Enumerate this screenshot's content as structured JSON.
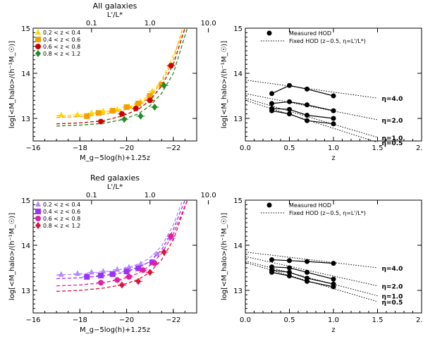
{
  "chart_data": [
    {
      "id": "all-hod-mag",
      "type": "scatter",
      "title": "All galaxies",
      "xlabel": "M_g−5log(h)+1.25z",
      "ylabel": "log[<M_halo>/(h⁻¹M_☉)]",
      "top_xlabel": "L'/L*",
      "xlim": [
        -16,
        -23
      ],
      "ylim": [
        12.5,
        15
      ],
      "xticks": [
        -16,
        -18,
        -20,
        -22
      ],
      "xtick_labels": [
        "−16",
        "−18",
        "−20",
        "−22"
      ],
      "yticks": [
        13,
        14,
        15
      ],
      "ytick_labels": [
        "13",
        "14",
        "15"
      ],
      "top_ticks": [
        0.1,
        1.0,
        10.0
      ],
      "top_tick_labels": [
        "0.1",
        "1.0",
        "10.0"
      ],
      "legend_position": "top-left",
      "series": [
        {
          "name": "0.2 < z < 0.4",
          "color": "#FFD700",
          "marker": "triangle",
          "x": [
            -17.2,
            -17.9,
            -18.5,
            -19.0,
            -19.6,
            -20.1,
            -20.6,
            -21.1
          ],
          "y": [
            13.07,
            13.08,
            13.12,
            13.16,
            13.2,
            13.26,
            13.37,
            13.6
          ],
          "curve": [
            [
              -17.0,
              13.06
            ],
            [
              -18.0,
              13.08
            ],
            [
              -19.0,
              13.13
            ],
            [
              -19.8,
              13.2
            ],
            [
              -20.5,
              13.34
            ],
            [
              -21.0,
              13.52
            ],
            [
              -21.5,
              13.85
            ],
            [
              -22.0,
              14.4
            ],
            [
              -22.5,
              15.0
            ]
          ]
        },
        {
          "name": "0.4 < z < 0.6",
          "color": "#F5A000",
          "marker": "square",
          "x": [
            -18.3,
            -18.8,
            -19.4,
            -20.0,
            -20.5,
            -21.0,
            -21.5
          ],
          "y": [
            13.05,
            13.12,
            13.17,
            13.25,
            13.33,
            13.5,
            13.75
          ],
          "curve": [
            [
              -17.0,
              13.02
            ],
            [
              -18.0,
              13.04
            ],
            [
              -19.0,
              13.09
            ],
            [
              -19.8,
              13.17
            ],
            [
              -20.5,
              13.3
            ],
            [
              -21.0,
              13.48
            ],
            [
              -21.5,
              13.8
            ],
            [
              -22.0,
              14.3
            ],
            [
              -22.4,
              15.0
            ]
          ]
        },
        {
          "name": "0.6 < z < 0.8",
          "color": "#CC0000",
          "marker": "circle",
          "x": [
            -18.9,
            -19.8,
            -20.4,
            -21.0,
            -21.9
          ],
          "y": [
            12.93,
            13.1,
            13.22,
            13.4,
            14.17
          ],
          "curve": [
            [
              -17.0,
              12.88
            ],
            [
              -18.0,
              12.9
            ],
            [
              -19.0,
              12.95
            ],
            [
              -19.8,
              13.05
            ],
            [
              -20.5,
              13.2
            ],
            [
              -21.0,
              13.4
            ],
            [
              -21.5,
              13.72
            ],
            [
              -22.0,
              14.2
            ],
            [
              -22.5,
              15.0
            ]
          ]
        },
        {
          "name": "0.8 < z < 1.2",
          "color": "#228B22",
          "marker": "diamond",
          "x": [
            -19.9,
            -20.6,
            -21.2,
            -21.6
          ],
          "y": [
            12.98,
            13.05,
            13.25,
            13.73
          ],
          "curve": [
            [
              -17.0,
              12.83
            ],
            [
              -18.0,
              12.85
            ],
            [
              -19.0,
              12.89
            ],
            [
              -19.8,
              12.97
            ],
            [
              -20.5,
              13.1
            ],
            [
              -21.0,
              13.28
            ],
            [
              -21.5,
              13.56
            ],
            [
              -22.0,
              14.0
            ],
            [
              -22.6,
              15.0
            ]
          ]
        }
      ]
    },
    {
      "id": "all-hod-z",
      "type": "line",
      "title": "",
      "xlabel": "z",
      "ylabel": "log[<M_halo>/(h⁻¹M_☉)]",
      "xlim": [
        0,
        2
      ],
      "ylim": [
        12.5,
        15
      ],
      "xticks": [
        0,
        0.5,
        1.0,
        1.5,
        2.0
      ],
      "xtick_labels": [
        "0.0",
        "0.5",
        "1.0",
        "1.5",
        "2.0"
      ],
      "yticks": [
        13,
        14,
        15
      ],
      "ytick_labels": [
        "13",
        "14",
        "15"
      ],
      "legend": [
        "Measured HOD",
        "Fixed HOD (z~0.5, η=L'/L*)"
      ],
      "legend_position": "top-left",
      "measured": [
        {
          "x": [
            0.3,
            0.5,
            0.7,
            1.0
          ],
          "y": [
            13.55,
            13.73,
            13.65,
            13.5
          ]
        },
        {
          "x": [
            0.3,
            0.5,
            0.7,
            1.0
          ],
          "y": [
            13.33,
            13.37,
            13.3,
            13.17
          ]
        },
        {
          "x": [
            0.3,
            0.5,
            0.7,
            1.0
          ],
          "y": [
            13.22,
            13.2,
            13.07,
            13.0
          ]
        },
        {
          "x": [
            0.3,
            0.5,
            0.7,
            1.0
          ],
          "y": [
            13.17,
            13.1,
            12.95,
            12.88
          ]
        }
      ],
      "fixed": [
        {
          "label": "η=4.0",
          "x": [
            0,
            1.5
          ],
          "y": [
            13.85,
            13.45
          ]
        },
        {
          "label": "η=2.0",
          "x": [
            0,
            1.5
          ],
          "y": [
            13.55,
            12.97
          ]
        },
        {
          "label": "η=1.0",
          "x": [
            0,
            1.5
          ],
          "y": [
            13.45,
            12.58
          ]
        },
        {
          "label": "η=0.5",
          "x": [
            0,
            1.5
          ],
          "y": [
            13.4,
            12.47
          ]
        }
      ]
    },
    {
      "id": "red-hod-mag",
      "type": "scatter",
      "title": "Red galaxies",
      "xlabel": "M_g−5log(h)+1.25z",
      "ylabel": "log[<M_halo>/(h⁻¹M_☉)]",
      "top_xlabel": "L'/L*",
      "xlim": [
        -16,
        -23
      ],
      "ylim": [
        12.5,
        15
      ],
      "xticks": [
        -16,
        -18,
        -20,
        -22
      ],
      "xtick_labels": [
        "−16",
        "−18",
        "−20",
        "−22"
      ],
      "yticks": [
        13,
        14,
        15
      ],
      "ytick_labels": [
        "13",
        "14",
        "15"
      ],
      "top_ticks": [
        0.1,
        1.0,
        10.0
      ],
      "top_tick_labels": [
        "0.1",
        "1.0",
        "10.0"
      ],
      "legend_position": "top-left",
      "series": [
        {
          "name": "0.2 < z < 0.4",
          "color": "#B388FF",
          "marker": "triangle",
          "x": [
            -17.2,
            -17.9,
            -18.5,
            -19.0,
            -19.6,
            -20.1,
            -20.6,
            -21.3,
            -21.9
          ],
          "y": [
            13.35,
            13.37,
            13.4,
            13.42,
            13.46,
            13.51,
            13.58,
            13.8,
            14.15
          ],
          "curve": [
            [
              -17.0,
              13.34
            ],
            [
              -18.0,
              13.36
            ],
            [
              -19.0,
              13.4
            ],
            [
              -19.8,
              13.47
            ],
            [
              -20.5,
              13.58
            ],
            [
              -21.0,
              13.72
            ],
            [
              -21.5,
              13.98
            ],
            [
              -22.0,
              14.45
            ],
            [
              -22.4,
              15.0
            ]
          ]
        },
        {
          "name": "0.4 < z < 0.6",
          "color": "#9B30FF",
          "marker": "square",
          "x": [
            -18.3,
            -18.9,
            -19.4,
            -20.0,
            -20.5,
            -21.1
          ],
          "y": [
            13.3,
            13.33,
            13.36,
            13.42,
            13.49,
            13.62
          ],
          "curve": [
            [
              -17.0,
              13.26
            ],
            [
              -18.0,
              13.28
            ],
            [
              -19.0,
              13.32
            ],
            [
              -19.8,
              13.39
            ],
            [
              -20.5,
              13.5
            ],
            [
              -21.0,
              13.64
            ],
            [
              -21.5,
              13.9
            ],
            [
              -22.0,
              14.35
            ],
            [
              -22.5,
              15.0
            ]
          ]
        },
        {
          "name": "0.6 < z < 0.8",
          "color": "#E0209F",
          "marker": "circle",
          "x": [
            -18.9,
            -19.6,
            -20.1,
            -20.7,
            -21.2,
            -21.9
          ],
          "y": [
            13.17,
            13.23,
            13.3,
            13.45,
            13.6,
            14.2
          ],
          "curve": [
            [
              -17.0,
              13.1
            ],
            [
              -18.0,
              13.12
            ],
            [
              -19.0,
              13.17
            ],
            [
              -19.8,
              13.25
            ],
            [
              -20.5,
              13.38
            ],
            [
              -21.0,
              13.55
            ],
            [
              -21.5,
              13.82
            ],
            [
              -22.0,
              14.25
            ],
            [
              -22.6,
              15.0
            ]
          ]
        },
        {
          "name": "0.8 < z < 1.2",
          "color": "#DC143C",
          "marker": "diamond",
          "x": [
            -19.8,
            -20.5,
            -21.0,
            -21.6
          ],
          "y": [
            13.12,
            13.2,
            13.4,
            13.85
          ],
          "curve": [
            [
              -17.0,
              12.98
            ],
            [
              -18.0,
              13.0
            ],
            [
              -19.0,
              13.05
            ],
            [
              -19.8,
              13.12
            ],
            [
              -20.5,
              13.24
            ],
            [
              -21.0,
              13.4
            ],
            [
              -21.5,
              13.68
            ],
            [
              -22.0,
              14.12
            ],
            [
              -22.6,
              15.0
            ]
          ]
        }
      ]
    },
    {
      "id": "red-hod-z",
      "type": "line",
      "title": "",
      "xlabel": "z",
      "ylabel": "log[<M_halo>/(h⁻¹M_☉)]",
      "xlim": [
        0,
        2
      ],
      "ylim": [
        12.5,
        15
      ],
      "xticks": [
        0,
        0.5,
        1.0,
        1.5,
        2.0
      ],
      "xtick_labels": [
        "0.0",
        "0.5",
        "1.0",
        "1.5",
        "2.0"
      ],
      "yticks": [
        13,
        14,
        15
      ],
      "ytick_labels": [
        "13",
        "14",
        "15"
      ],
      "legend": [
        "Measured HOD",
        "Fixed HOD (z~0.5, η=L'/L*)"
      ],
      "legend_position": "top-left",
      "measured": [
        {
          "x": [
            0.3,
            0.5,
            0.7,
            1.0
          ],
          "y": [
            13.68,
            13.66,
            13.64,
            13.6
          ]
        },
        {
          "x": [
            0.3,
            0.5,
            0.7,
            1.0
          ],
          "y": [
            13.52,
            13.5,
            13.4,
            13.25
          ]
        },
        {
          "x": [
            0.3,
            0.5,
            0.7,
            1.0
          ],
          "y": [
            13.45,
            13.4,
            13.27,
            13.14
          ]
        },
        {
          "x": [
            0.3,
            0.5,
            0.7,
            1.0
          ],
          "y": [
            13.4,
            13.32,
            13.2,
            13.08
          ]
        }
      ],
      "fixed": [
        {
          "label": "η=4.0",
          "x": [
            0,
            1.5
          ],
          "y": [
            13.85,
            13.5
          ]
        },
        {
          "label": "η=2.0",
          "x": [
            0,
            1.5
          ],
          "y": [
            13.75,
            13.1
          ]
        },
        {
          "label": "η=1.0",
          "x": [
            0,
            1.5
          ],
          "y": [
            13.65,
            12.88
          ]
        },
        {
          "label": "η=0.5",
          "x": [
            0,
            1.5
          ],
          "y": [
            13.62,
            12.75
          ]
        }
      ]
    }
  ]
}
